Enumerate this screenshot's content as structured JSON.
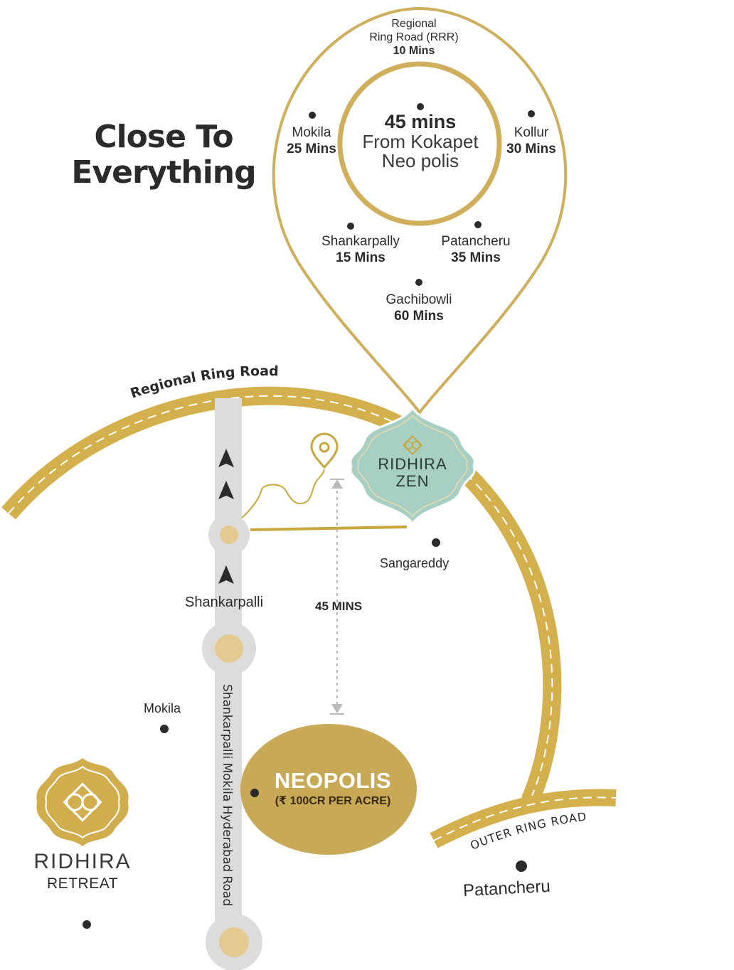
{
  "headline": {
    "line1": "Close To",
    "line2": "Everything"
  },
  "pin_callout": {
    "top": {
      "name_line1": "Regional",
      "name_line2": "Ring Road (RRR)",
      "time": "10 Mins"
    },
    "left": {
      "name": "Mokila",
      "time": "25 Mins"
    },
    "right": {
      "name": "Kollur",
      "time": "30 Mins"
    },
    "bottom_left": {
      "name": "Shankarpally",
      "time": "15 Mins"
    },
    "bottom_right": {
      "name": "Patancheru",
      "time": "35 Mins"
    },
    "bottom": {
      "name": "Gachibowli",
      "time": "60 Mins"
    },
    "hub": {
      "time": "45 mins",
      "line1": "From Kokapet",
      "line2": "Neo polis"
    }
  },
  "map": {
    "regional_ring_road": "Regional Ring Road",
    "outer_ring_road": "OUTER RING ROAD",
    "vertical_road": "Shankarpalli Mokila Hyderabad Road",
    "sangareddy": "Sangareddy",
    "shankarpalli": "Shankarpalli",
    "mokila": "Mokila",
    "patancheru": "Patancheru",
    "travel_time": "45 MINS"
  },
  "ridhira_zen": {
    "line1": "RIDHIRA",
    "line2": "ZEN"
  },
  "neopolis": {
    "title": "NEOPOLIS",
    "subtitle": "(₹ 100CR PER ACRE)"
  },
  "ridhira_retreat": {
    "line1": "RIDHIRA",
    "line2": "RETREAT"
  },
  "colors": {
    "gold": "#D4B04C",
    "gold_dark": "#C9A73F",
    "pin_outline": "#CFAE5C",
    "road_grey": "#DCDCDC",
    "zen_teal": "#A8CFC4",
    "text_dark": "#2B2B2B"
  },
  "icons": [
    "location-pin-icon",
    "up-arrow-icon",
    "ornament-logo-icon"
  ]
}
